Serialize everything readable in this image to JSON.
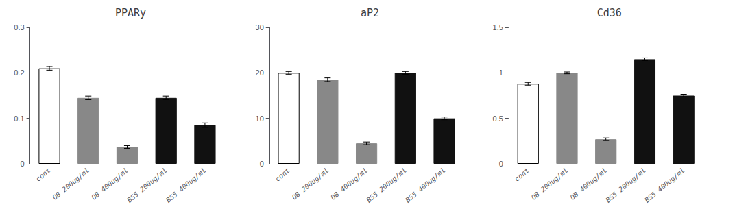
{
  "chart_data": [
    {
      "type": "bar",
      "title": "PPARy",
      "categories": [
        "cont",
        "OB 200ug/ml",
        "OB 400ug/ml",
        "BS5 200ug/ml",
        "BS5 400ug/ml"
      ],
      "values": [
        0.21,
        0.145,
        0.037,
        0.145,
        0.085
      ],
      "errors": [
        0.004,
        0.004,
        0.003,
        0.004,
        0.005
      ],
      "colors": [
        "white",
        "#888888",
        "#888888",
        "#111111",
        "#111111"
      ],
      "ylim": [
        0,
        0.3
      ],
      "yticks": [
        0,
        0.1,
        0.2,
        0.3
      ],
      "grid": false
    },
    {
      "type": "bar",
      "title": "aP2",
      "categories": [
        "cont",
        "OB 200ug/ml",
        "OB 400ug/ml",
        "BS5 200ug/ml",
        "BS5 400ug/ml"
      ],
      "values": [
        20.0,
        18.5,
        4.5,
        20.0,
        10.0
      ],
      "errors": [
        0.3,
        0.4,
        0.3,
        0.3,
        0.3
      ],
      "colors": [
        "white",
        "#888888",
        "#888888",
        "#111111",
        "#111111"
      ],
      "ylim": [
        0,
        30
      ],
      "yticks": [
        0,
        10,
        20,
        30
      ],
      "grid": false
    },
    {
      "type": "bar",
      "title": "Cd36",
      "categories": [
        "cont",
        "OB 200ug/ml",
        "OB 400ug/ml",
        "BS5 200ug/ml",
        "BS5 400ug/ml"
      ],
      "values": [
        0.88,
        1.0,
        0.27,
        1.15,
        0.75
      ],
      "errors": [
        0.015,
        0.01,
        0.015,
        0.015,
        0.015
      ],
      "colors": [
        "white",
        "#888888",
        "#888888",
        "#111111",
        "#111111"
      ],
      "ylim": [
        0,
        1.5
      ],
      "yticks": [
        0,
        0.5,
        1,
        1.5
      ],
      "grid": false
    }
  ]
}
